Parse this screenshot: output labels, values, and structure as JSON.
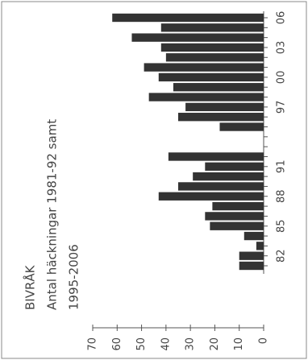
{
  "chart_data": {
    "type": "bar",
    "orientation": "rotated",
    "title": "BIVRÅK",
    "subtitle": "Antal häckningar 1981-92 samt",
    "subtitle2": "1995-2006",
    "categories": [
      null,
      "82",
      null,
      null,
      "85",
      null,
      null,
      "88",
      null,
      null,
      "91",
      null,
      null,
      null,
      null,
      null,
      "97",
      null,
      null,
      "00",
      null,
      null,
      "03",
      null,
      null,
      "06"
    ],
    "values": [
      10,
      10,
      3,
      8,
      22,
      24,
      21,
      43,
      35,
      29,
      24,
      39,
      null,
      null,
      18,
      35,
      32,
      47,
      37,
      43,
      49,
      40,
      42,
      54,
      42,
      62
    ],
    "color": "#333333",
    "ylim": [
      0,
      70
    ],
    "yticks": [
      0,
      10,
      20,
      30,
      40,
      50,
      60,
      70
    ]
  }
}
